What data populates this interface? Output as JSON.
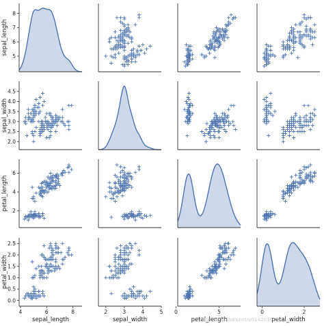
{
  "chart_data": {
    "type": "scatter",
    "title": "",
    "variables": [
      "sepal_length",
      "sepal_width",
      "petal_length",
      "petal_width"
    ],
    "axis_labels": {
      "x": [
        "sepal_length",
        "sepal_width",
        "petal_length",
        "petal_width"
      ],
      "y": [
        "sepal_length",
        "sepal_width",
        "petal_length",
        "petal_width"
      ]
    },
    "ranges": {
      "sepal_length": [
        3.9,
        8.7
      ],
      "sepal_width": [
        1.6,
        5.0
      ],
      "petal_length": [
        0.2,
        7.5
      ],
      "petal_width": [
        -0.25,
        2.75
      ]
    },
    "ticks": {
      "x": {
        "sepal_length": [
          4,
          6,
          8
        ],
        "sepal_width": [
          2,
          3,
          4,
          5
        ],
        "petal_length": [
          0,
          5
        ],
        "petal_width": [
          0,
          2
        ]
      },
      "y": {
        "sepal_length": [
          5,
          6,
          7,
          8
        ],
        "sepal_width": [
          2.0,
          2.5,
          3.0,
          3.5,
          4.0,
          4.5
        ],
        "petal_length": [
          2,
          4,
          6
        ],
        "petal_width": [
          0.0,
          0.5,
          1.0,
          1.5,
          2.0,
          2.5
        ]
      }
    },
    "marker": "+",
    "diagonal": "kde",
    "grid": false,
    "colors": {
      "points": "#4C72B0",
      "kde_fill": "#cfd8ea",
      "spine": "#333333"
    },
    "kde_peaks": {
      "sepal_length": [
        5.9
      ],
      "sepal_width": [
        3.0
      ],
      "petal_length": [
        1.5,
        4.8
      ],
      "petal_width": [
        0.2,
        1.5
      ]
    },
    "points": {
      "sepal_length": [
        5.1,
        4.9,
        4.7,
        4.6,
        5.0,
        5.4,
        4.6,
        5.0,
        4.4,
        4.9,
        5.4,
        4.8,
        4.8,
        4.3,
        5.8,
        5.7,
        5.4,
        5.1,
        5.7,
        5.1,
        5.4,
        5.1,
        4.6,
        5.1,
        4.8,
        5.0,
        5.0,
        5.2,
        5.2,
        4.7,
        4.8,
        5.4,
        5.2,
        5.5,
        4.9,
        5.0,
        5.5,
        4.9,
        4.4,
        5.1,
        5.0,
        4.5,
        4.4,
        5.0,
        5.1,
        4.8,
        5.1,
        4.6,
        5.3,
        5.0,
        7.0,
        6.4,
        6.9,
        5.5,
        6.5,
        5.7,
        6.3,
        4.9,
        6.6,
        5.2,
        5.0,
        5.9,
        6.0,
        6.1,
        5.6,
        6.7,
        5.6,
        5.8,
        6.2,
        5.6,
        5.9,
        6.1,
        6.3,
        6.1,
        6.4,
        6.6,
        6.8,
        6.7,
        6.0,
        5.7,
        5.5,
        5.5,
        5.8,
        6.0,
        5.4,
        6.0,
        6.7,
        6.3,
        5.6,
        5.5,
        5.5,
        6.1,
        5.8,
        5.0,
        5.6,
        5.7,
        5.7,
        6.2,
        5.1,
        5.7,
        6.3,
        5.8,
        7.1,
        6.3,
        6.5,
        7.6,
        4.9,
        7.3,
        6.7,
        7.2,
        6.5,
        6.4,
        6.8,
        5.7,
        5.8,
        6.4,
        6.5,
        7.7,
        7.7,
        6.0,
        6.9,
        5.6,
        7.7,
        6.3,
        6.7,
        7.2,
        6.2,
        6.1,
        6.4,
        7.2,
        7.4,
        7.9,
        6.4,
        6.3,
        6.1,
        7.7,
        6.3,
        6.4,
        6.0,
        6.9,
        6.7,
        6.9,
        5.8,
        6.8,
        6.7,
        6.7,
        6.3,
        6.5,
        6.2,
        5.9
      ],
      "sepal_width": [
        3.5,
        3.0,
        3.2,
        3.1,
        3.6,
        3.9,
        3.4,
        3.4,
        2.9,
        3.1,
        3.7,
        3.4,
        3.0,
        3.0,
        4.0,
        4.4,
        3.9,
        3.5,
        3.8,
        3.8,
        3.4,
        3.7,
        3.6,
        3.3,
        3.4,
        3.0,
        3.4,
        3.5,
        3.4,
        3.2,
        3.1,
        3.4,
        4.1,
        4.2,
        3.1,
        3.2,
        3.5,
        3.6,
        3.0,
        3.4,
        3.5,
        2.3,
        3.2,
        3.5,
        3.8,
        3.0,
        3.8,
        3.2,
        3.7,
        3.3,
        3.2,
        3.2,
        3.1,
        2.3,
        2.8,
        2.8,
        3.3,
        2.4,
        2.9,
        2.7,
        2.0,
        3.0,
        2.2,
        2.9,
        2.9,
        3.1,
        3.0,
        2.7,
        2.2,
        2.5,
        3.2,
        2.8,
        2.5,
        2.8,
        2.9,
        3.0,
        2.8,
        3.0,
        2.9,
        2.6,
        2.4,
        2.4,
        2.7,
        2.7,
        3.0,
        3.4,
        3.1,
        2.3,
        3.0,
        2.5,
        2.6,
        3.0,
        2.6,
        2.3,
        2.7,
        3.0,
        2.9,
        2.9,
        2.5,
        2.8,
        3.3,
        2.7,
        3.0,
        2.9,
        3.0,
        3.0,
        2.5,
        2.9,
        2.5,
        3.6,
        3.2,
        2.7,
        3.0,
        2.5,
        2.8,
        3.2,
        3.0,
        3.8,
        2.6,
        2.2,
        3.2,
        2.8,
        2.8,
        2.7,
        3.3,
        3.2,
        2.8,
        3.0,
        2.8,
        3.0,
        2.8,
        3.8,
        2.8,
        2.8,
        2.6,
        3.0,
        3.4,
        3.1,
        3.0,
        3.1,
        3.1,
        3.1,
        2.7,
        3.2,
        3.3,
        3.0,
        2.5,
        3.0,
        3.4,
        3.0
      ],
      "petal_length": [
        1.4,
        1.4,
        1.3,
        1.5,
        1.4,
        1.7,
        1.4,
        1.5,
        1.4,
        1.5,
        1.5,
        1.6,
        1.4,
        1.1,
        1.2,
        1.5,
        1.3,
        1.4,
        1.7,
        1.5,
        1.7,
        1.5,
        1.0,
        1.7,
        1.9,
        1.6,
        1.6,
        1.5,
        1.4,
        1.6,
        1.6,
        1.5,
        1.5,
        1.4,
        1.5,
        1.2,
        1.3,
        1.4,
        1.3,
        1.5,
        1.3,
        1.3,
        1.3,
        1.6,
        1.9,
        1.4,
        1.6,
        1.4,
        1.5,
        1.4,
        4.7,
        4.5,
        4.9,
        4.0,
        4.6,
        4.5,
        4.7,
        3.3,
        4.6,
        3.9,
        3.5,
        4.2,
        4.0,
        4.7,
        3.6,
        4.4,
        4.5,
        4.1,
        4.5,
        3.9,
        4.8,
        4.0,
        4.9,
        4.7,
        4.3,
        4.4,
        4.8,
        5.0,
        4.5,
        3.5,
        3.8,
        3.7,
        3.9,
        5.1,
        4.5,
        4.5,
        4.7,
        4.4,
        4.1,
        4.0,
        4.4,
        4.6,
        4.0,
        3.3,
        4.2,
        4.2,
        4.2,
        4.3,
        3.0,
        4.1,
        6.0,
        5.1,
        5.9,
        5.6,
        5.8,
        6.6,
        4.5,
        6.3,
        5.8,
        6.1,
        5.1,
        5.3,
        5.5,
        5.0,
        5.1,
        5.3,
        5.5,
        6.7,
        6.9,
        5.0,
        5.7,
        4.9,
        6.7,
        4.9,
        5.7,
        6.0,
        4.8,
        4.9,
        5.6,
        5.8,
        6.1,
        6.4,
        5.6,
        5.1,
        5.6,
        6.1,
        5.6,
        5.5,
        4.8,
        5.4,
        5.6,
        5.1,
        5.1,
        5.9,
        5.7,
        5.2,
        5.0,
        5.2,
        5.4,
        5.1
      ],
      "petal_width": [
        0.2,
        0.2,
        0.2,
        0.2,
        0.2,
        0.4,
        0.3,
        0.2,
        0.2,
        0.1,
        0.2,
        0.2,
        0.1,
        0.1,
        0.2,
        0.4,
        0.4,
        0.3,
        0.3,
        0.3,
        0.2,
        0.4,
        0.2,
        0.5,
        0.2,
        0.2,
        0.4,
        0.2,
        0.2,
        0.2,
        0.2,
        0.4,
        0.1,
        0.2,
        0.1,
        0.2,
        0.2,
        0.1,
        0.2,
        0.2,
        0.3,
        0.3,
        0.2,
        0.6,
        0.4,
        0.3,
        0.2,
        0.2,
        0.2,
        0.2,
        1.4,
        1.5,
        1.5,
        1.3,
        1.5,
        1.3,
        1.6,
        1.0,
        1.3,
        1.4,
        1.0,
        1.5,
        1.0,
        1.4,
        1.3,
        1.4,
        1.5,
        1.0,
        1.5,
        1.1,
        1.8,
        1.3,
        1.5,
        1.2,
        1.3,
        1.4,
        1.4,
        1.7,
        1.5,
        1.0,
        1.1,
        1.0,
        1.2,
        1.6,
        1.5,
        1.6,
        1.5,
        1.3,
        1.3,
        1.3,
        1.2,
        1.4,
        1.2,
        1.0,
        1.3,
        1.2,
        1.3,
        1.3,
        1.1,
        1.3,
        2.5,
        1.9,
        2.1,
        1.8,
        2.2,
        2.1,
        1.7,
        1.8,
        1.8,
        2.5,
        2.0,
        1.9,
        2.1,
        2.0,
        2.4,
        2.3,
        1.8,
        2.2,
        2.3,
        1.5,
        2.3,
        2.0,
        2.0,
        1.8,
        2.1,
        1.8,
        1.8,
        1.8,
        2.1,
        1.6,
        1.9,
        2.0,
        2.2,
        1.5,
        1.4,
        2.3,
        2.4,
        1.8,
        1.8,
        2.1,
        2.4,
        2.3,
        1.9,
        2.3,
        2.5,
        2.3,
        1.9,
        2.0,
        2.3,
        1.8
      ]
    }
  },
  "watermark": "http://blog.csdn.net/u014281007"
}
